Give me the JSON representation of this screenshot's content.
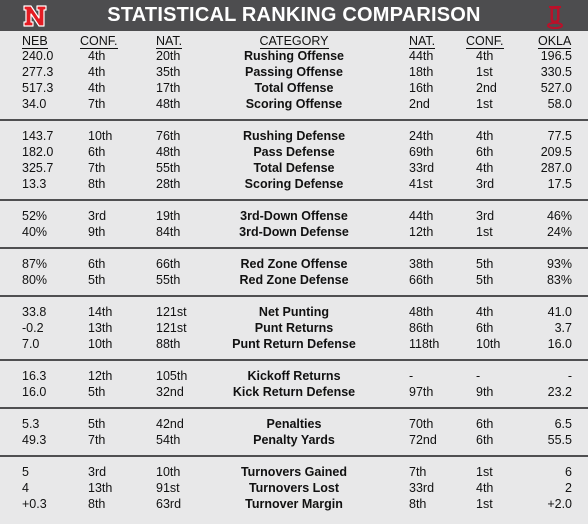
{
  "title": "STATISTICAL RANKING COMPARISON",
  "logos": {
    "left": "nebraska-n-logo",
    "right": "oklahoma-ou-logo",
    "left_color": "#e41c23",
    "right_color": "#b8112a"
  },
  "headers": {
    "neb": "NEB",
    "neb_conf": "CONF.",
    "neb_nat": "NAT.",
    "category": "CATEGORY",
    "okla_nat": "NAT.",
    "okla_conf": "CONF.",
    "okla": "OKLA"
  },
  "groups": [
    {
      "rows": [
        {
          "neb": "240.0",
          "neb_conf": "4th",
          "neb_nat": "20th",
          "category": "Rushing Offense",
          "okla_nat": "44th",
          "okla_conf": "4th",
          "okla": "196.5"
        },
        {
          "neb": "277.3",
          "neb_conf": "4th",
          "neb_nat": "35th",
          "category": "Passing Offense",
          "okla_nat": "18th",
          "okla_conf": "1st",
          "okla": "330.5"
        },
        {
          "neb": "517.3",
          "neb_conf": "4th",
          "neb_nat": "17th",
          "category": "Total Offense",
          "okla_nat": "16th",
          "okla_conf": "2nd",
          "okla": "527.0"
        },
        {
          "neb": "34.0",
          "neb_conf": "7th",
          "neb_nat": "48th",
          "category": "Scoring Offense",
          "okla_nat": "2nd",
          "okla_conf": "1st",
          "okla": "58.0"
        }
      ]
    },
    {
      "rows": [
        {
          "neb": "143.7",
          "neb_conf": "10th",
          "neb_nat": "76th",
          "category": "Rushing Defense",
          "okla_nat": "24th",
          "okla_conf": "4th",
          "okla": "77.5"
        },
        {
          "neb": "182.0",
          "neb_conf": "6th",
          "neb_nat": "48th",
          "category": "Pass Defense",
          "okla_nat": "69th",
          "okla_conf": "6th",
          "okla": "209.5"
        },
        {
          "neb": "325.7",
          "neb_conf": "7th",
          "neb_nat": "55th",
          "category": "Total Defense",
          "okla_nat": "33rd",
          "okla_conf": "4th",
          "okla": "287.0"
        },
        {
          "neb": "13.3",
          "neb_conf": "8th",
          "neb_nat": "28th",
          "category": "Scoring Defense",
          "okla_nat": "41st",
          "okla_conf": "3rd",
          "okla": "17.5"
        }
      ]
    },
    {
      "rows": [
        {
          "neb": "52%",
          "neb_conf": "3rd",
          "neb_nat": "19th",
          "category": "3rd-Down Offense",
          "okla_nat": "44th",
          "okla_conf": "3rd",
          "okla": "46%"
        },
        {
          "neb": "40%",
          "neb_conf": "9th",
          "neb_nat": "84th",
          "category": "3rd-Down Defense",
          "okla_nat": "12th",
          "okla_conf": "1st",
          "okla": "24%"
        }
      ]
    },
    {
      "rows": [
        {
          "neb": "87%",
          "neb_conf": "6th",
          "neb_nat": "66th",
          "category": "Red Zone Offense",
          "okla_nat": "38th",
          "okla_conf": "5th",
          "okla": "93%"
        },
        {
          "neb": "80%",
          "neb_conf": "5th",
          "neb_nat": "55th",
          "category": "Red Zone Defense",
          "okla_nat": "66th",
          "okla_conf": "5th",
          "okla": "83%"
        }
      ]
    },
    {
      "rows": [
        {
          "neb": "33.8",
          "neb_conf": "14th",
          "neb_nat": "121st",
          "category": "Net Punting",
          "okla_nat": "48th",
          "okla_conf": "4th",
          "okla": "41.0"
        },
        {
          "neb": "-0.2",
          "neb_conf": "13th",
          "neb_nat": "121st",
          "category": "Punt Returns",
          "okla_nat": "86th",
          "okla_conf": "6th",
          "okla": "3.7"
        },
        {
          "neb": "7.0",
          "neb_conf": "10th",
          "neb_nat": "88th",
          "category": "Punt Return Defense",
          "okla_nat": "118th",
          "okla_conf": "10th",
          "okla": "16.0"
        }
      ]
    },
    {
      "rows": [
        {
          "neb": "16.3",
          "neb_conf": "12th",
          "neb_nat": "105th",
          "category": "Kickoff Returns",
          "okla_nat": "-",
          "okla_conf": "-",
          "okla": "-"
        },
        {
          "neb": "16.0",
          "neb_conf": "5th",
          "neb_nat": "32nd",
          "category": "Kick Return Defense",
          "okla_nat": "97th",
          "okla_conf": "9th",
          "okla": "23.2"
        }
      ]
    },
    {
      "rows": [
        {
          "neb": "5.3",
          "neb_conf": "5th",
          "neb_nat": "42nd",
          "category": "Penalties",
          "okla_nat": "70th",
          "okla_conf": "6th",
          "okla": "6.5"
        },
        {
          "neb": "49.3",
          "neb_conf": "7th",
          "neb_nat": "54th",
          "category": "Penalty Yards",
          "okla_nat": "72nd",
          "okla_conf": "6th",
          "okla": "55.5"
        }
      ]
    },
    {
      "rows": [
        {
          "neb": "5",
          "neb_conf": "3rd",
          "neb_nat": "10th",
          "category": "Turnovers Gained",
          "okla_nat": "7th",
          "okla_conf": "1st",
          "okla": "6"
        },
        {
          "neb": "4",
          "neb_conf": "13th",
          "neb_nat": "91st",
          "category": "Turnovers Lost",
          "okla_nat": "33rd",
          "okla_conf": "4th",
          "okla": "2"
        },
        {
          "neb": "+0.3",
          "neb_conf": "8th",
          "neb_nat": "63rd",
          "category": "Turnover Margin",
          "okla_nat": "8th",
          "okla_conf": "1st",
          "okla": "+2.0"
        }
      ]
    }
  ]
}
